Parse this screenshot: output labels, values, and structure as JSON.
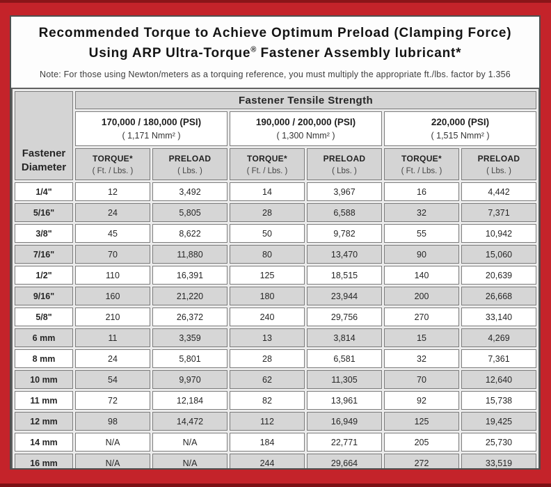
{
  "colors": {
    "frame_red": "#c4232a",
    "frame_edge_dark": "#8a1519",
    "header_gray": "#d4d4d4",
    "row_stripe_gray": "#d6d6d6",
    "cell_border_gray": "#7b7b7b",
    "text_dark": "#262626"
  },
  "title": {
    "line1": "Recommended Torque to Achieve Optimum Preload (Clamping Force)",
    "line2_pre": "Using ARP Ultra-Torque",
    "line2_reg": "®",
    "line2_post": " Fastener Assembly lubricant*"
  },
  "note": "Note: For those using Newton/meters as a torquing reference, you must multiply the appropriate ft./lbs. factor by 1.356",
  "table": {
    "corner_header_line1": "Fastener",
    "corner_header_line2": "Diameter",
    "tensile_header": "Fastener Tensile Strength",
    "groups": [
      {
        "psi": "170,000 / 180,000 (PSI)",
        "nmm": "( 1,171 Nmm² )"
      },
      {
        "psi": "190,000 / 200,000 (PSI)",
        "nmm": "( 1,300 Nmm² )"
      },
      {
        "psi": "220,000 (PSI)",
        "nmm": "( 1,515 Nmm² )"
      }
    ],
    "sub_headers": {
      "torque_label": "TORQUE*",
      "torque_unit": "( Ft. / Lbs. )",
      "preload_label": "PRELOAD",
      "preload_unit": "( Lbs. )"
    },
    "rows": [
      {
        "diameter": "1/4\"",
        "values": [
          "12",
          "3,492",
          "14",
          "3,967",
          "16",
          "4,442"
        ]
      },
      {
        "diameter": "5/16\"",
        "values": [
          "24",
          "5,805",
          "28",
          "6,588",
          "32",
          "7,371"
        ]
      },
      {
        "diameter": "3/8\"",
        "values": [
          "45",
          "8,622",
          "50",
          "9,782",
          "55",
          "10,942"
        ]
      },
      {
        "diameter": "7/16\"",
        "values": [
          "70",
          "11,880",
          "80",
          "13,470",
          "90",
          "15,060"
        ]
      },
      {
        "diameter": "1/2\"",
        "values": [
          "110",
          "16,391",
          "125",
          "18,515",
          "140",
          "20,639"
        ]
      },
      {
        "diameter": "9/16\"",
        "values": [
          "160",
          "21,220",
          "180",
          "23,944",
          "200",
          "26,668"
        ]
      },
      {
        "diameter": "5/8\"",
        "values": [
          "210",
          "26,372",
          "240",
          "29,756",
          "270",
          "33,140"
        ]
      },
      {
        "diameter": "6 mm",
        "values": [
          "11",
          "3,359",
          "13",
          "3,814",
          "15",
          "4,269"
        ]
      },
      {
        "diameter": "8 mm",
        "values": [
          "24",
          "5,801",
          "28",
          "6,581",
          "32",
          "7,361"
        ]
      },
      {
        "diameter": "10 mm",
        "values": [
          "54",
          "9,970",
          "62",
          "11,305",
          "70",
          "12,640"
        ]
      },
      {
        "diameter": "11 mm",
        "values": [
          "72",
          "12,184",
          "82",
          "13,961",
          "92",
          "15,738"
        ]
      },
      {
        "diameter": "12 mm",
        "values": [
          "98",
          "14,472",
          "112",
          "16,949",
          "125",
          "19,425"
        ]
      },
      {
        "diameter": "14 mm",
        "values": [
          "N/A",
          "N/A",
          "184",
          "22,771",
          "205",
          "25,730"
        ]
      },
      {
        "diameter": "16 mm",
        "values": [
          "N/A",
          "N/A",
          "244",
          "29,664",
          "272",
          "33,519"
        ]
      }
    ]
  }
}
